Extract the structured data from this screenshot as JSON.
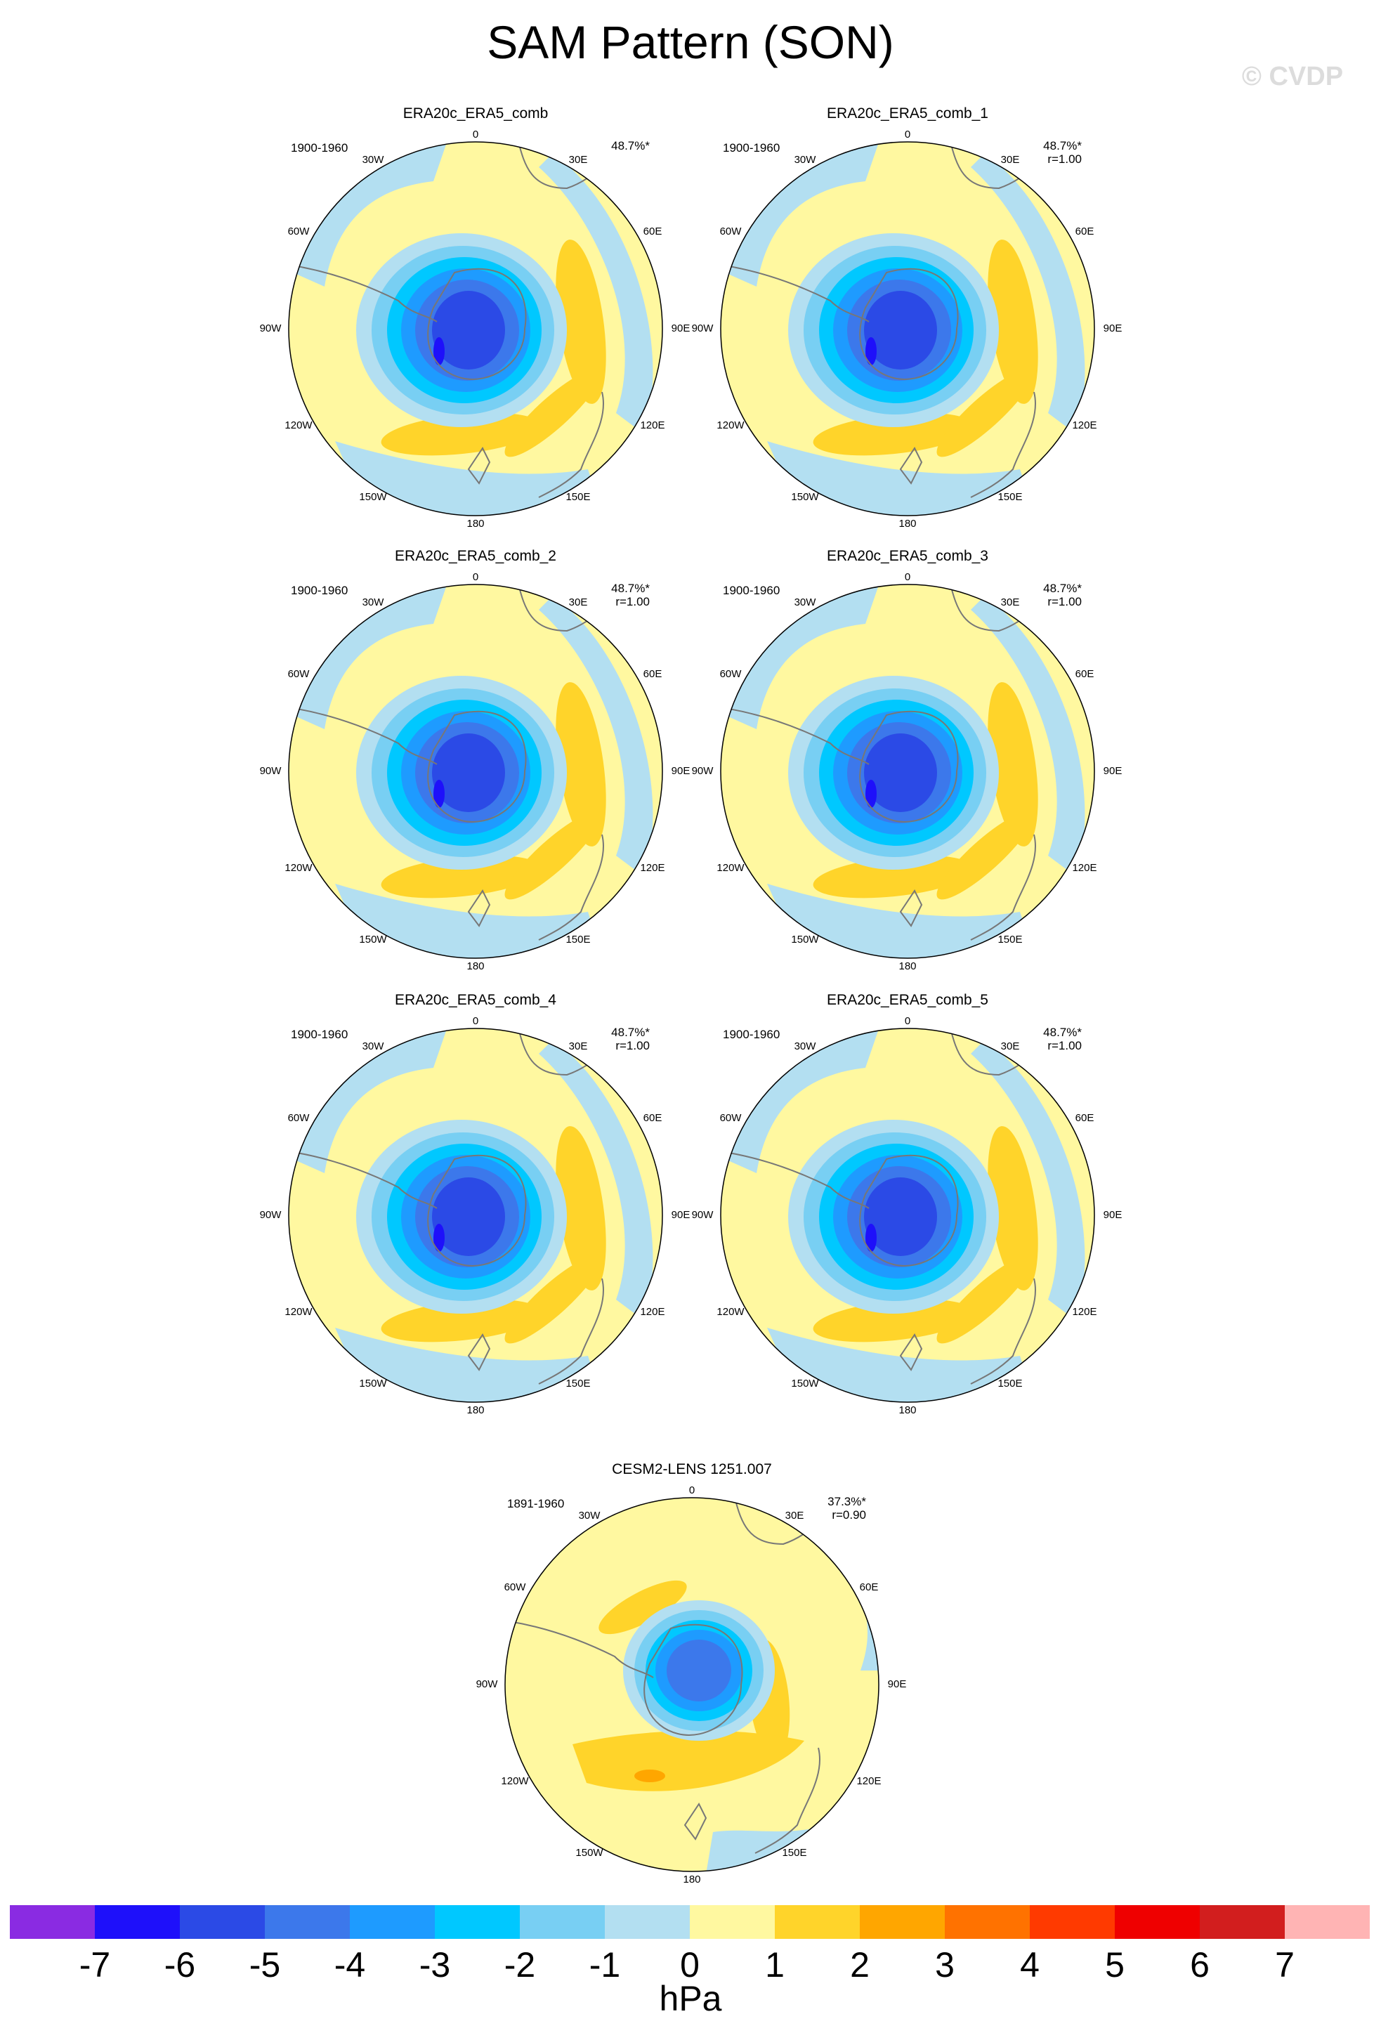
{
  "title": "SAM Pattern (SON)",
  "watermark": "© CVDP",
  "map_labels": {
    "lon_0": "0",
    "lon_30E": "30E",
    "lon_60E": "60E",
    "lon_90E": "90E",
    "lon_120E": "120E",
    "lon_150E": "150E",
    "lon_180": "180",
    "lon_150W": "150W",
    "lon_120W": "120W",
    "lon_90W": "90W",
    "lon_60W": "60W",
    "lon_30W": "30W"
  },
  "colors": {
    "land_outline": "#777777",
    "ocean_light": "#b3dff1"
  },
  "chart_data": {
    "type": "heatmap",
    "projection": "south-polar-stereographic",
    "field": "SAM pattern, sea level pressure regression",
    "colorbar": {
      "units": "hPa",
      "levels": [
        "-7",
        "-6",
        "-5",
        "-4",
        "-3",
        "-2",
        "-1",
        "0",
        "1",
        "2",
        "3",
        "4",
        "5",
        "6",
        "7"
      ],
      "colors": [
        "#8a2be2",
        "#1e10fa",
        "#2b4ae6",
        "#3c78eb",
        "#1e9bff",
        "#00c8ff",
        "#78cff3",
        "#b3dff1",
        "#fff8a0",
        "#ffd42a",
        "#ffa600",
        "#ff7200",
        "#ff3a00",
        "#ef0000",
        "#d21e1e",
        "#ffb4b4"
      ]
    },
    "panels": [
      {
        "name": "ERA20c_ERA5_comb",
        "years": "1900-1960",
        "pct": "48.7%*",
        "r": "",
        "variant": "obs"
      },
      {
        "name": "ERA20c_ERA5_comb_1",
        "years": "1900-1960",
        "pct": "48.7%*",
        "r": "r=1.00",
        "variant": "obs"
      },
      {
        "name": "ERA20c_ERA5_comb_2",
        "years": "1900-1960",
        "pct": "48.7%*",
        "r": "r=1.00",
        "variant": "obs"
      },
      {
        "name": "ERA20c_ERA5_comb_3",
        "years": "1900-1960",
        "pct": "48.7%*",
        "r": "r=1.00",
        "variant": "obs"
      },
      {
        "name": "ERA20c_ERA5_comb_4",
        "years": "1900-1960",
        "pct": "48.7%*",
        "r": "r=1.00",
        "variant": "obs"
      },
      {
        "name": "ERA20c_ERA5_comb_5",
        "years": "1900-1960",
        "pct": "48.7%*",
        "r": "r=1.00",
        "variant": "obs"
      },
      {
        "name": "CESM2-LENS 1251.007",
        "years": "1891-1960",
        "pct": "37.3%*",
        "r": "r=0.90",
        "variant": "model"
      }
    ]
  }
}
